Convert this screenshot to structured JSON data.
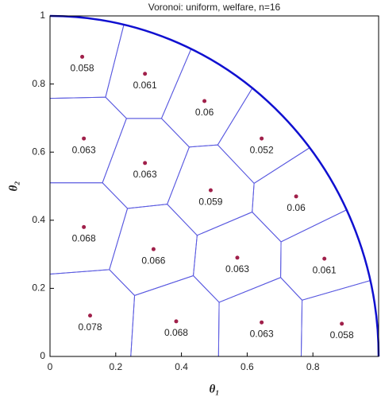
{
  "chart_data": {
    "type": "voronoi",
    "title": "Voronoi: uniform, welfare, n=16",
    "xlabel": "θ₁",
    "ylabel": "θ₂",
    "x": [
      0.098,
      0.289,
      0.47,
      0.103,
      0.289,
      0.644,
      0.489,
      0.749,
      0.103,
      0.315,
      0.57,
      0.835,
      0.122,
      0.384,
      0.644,
      0.888
    ],
    "y": [
      0.88,
      0.83,
      0.75,
      0.64,
      0.568,
      0.64,
      0.488,
      0.47,
      0.38,
      0.315,
      0.29,
      0.287,
      0.12,
      0.103,
      0.1,
      0.096
    ],
    "values": [
      0.058,
      0.061,
      0.06,
      0.063,
      0.063,
      0.052,
      0.059,
      0.06,
      0.068,
      0.066,
      0.063,
      0.061,
      0.078,
      0.068,
      0.063,
      0.058
    ],
    "point_color": "#a0204a",
    "edge_color": "#5a5ae0",
    "boundary_color": "#1010d0",
    "xlim": [
      0,
      1
    ],
    "ylim": [
      0,
      1
    ],
    "xticks": [
      0,
      0.2,
      0.4,
      0.6,
      0.8
    ],
    "yticks": [
      0,
      0.2,
      0.4,
      0.6,
      0.8,
      1
    ]
  }
}
